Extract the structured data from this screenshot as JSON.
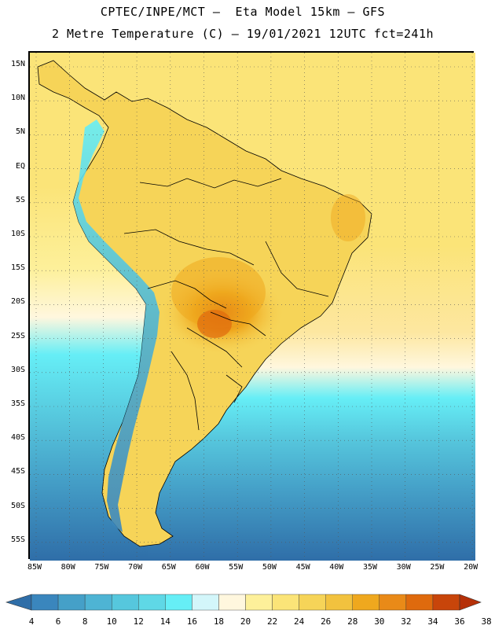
{
  "title_line1": "CPTEC/INPE/MCT –  Eta Model 15km – GFS",
  "title_line2": "2 Metre Temperature (C) – 19/01/2021 12UTC fct=241h",
  "lat_labels": [
    "15N",
    "10N",
    "5N",
    "EQ",
    "5S",
    "10S",
    "15S",
    "20S",
    "25S",
    "30S",
    "35S",
    "40S",
    "45S",
    "50S",
    "55S"
  ],
  "lon_labels": [
    "85W",
    "80W",
    "75W",
    "70W",
    "65W",
    "60W",
    "55W",
    "50W",
    "45W",
    "40W",
    "35W",
    "30W",
    "25W",
    "20W"
  ],
  "colorbar": {
    "values": [
      "4",
      "6",
      "8",
      "10",
      "12",
      "14",
      "16",
      "18",
      "20",
      "22",
      "24",
      "26",
      "28",
      "30",
      "32",
      "34",
      "36",
      "38"
    ],
    "colors": [
      "#2f6ea8",
      "#3a86bd",
      "#45a0c8",
      "#4eb4d4",
      "#56c7dd",
      "#5fd8e6",
      "#66eef6",
      "#d3f6fa",
      "#fff7de",
      "#fdf09a",
      "#fbe478",
      "#f6d458",
      "#f2c23e",
      "#efa81e",
      "#e98a18",
      "#df6a0d",
      "#c8450a",
      "#b53008"
    ]
  },
  "colors": {
    "ocean_cold": "#2f6ea8",
    "ocean_mid": "#4eb4d4",
    "ocean_cyan": "#66eef6",
    "ocean_warm": "#fbe478",
    "land_main": "#f6d458",
    "land_hot": "#e98a18",
    "andes": "#56c7dd"
  }
}
